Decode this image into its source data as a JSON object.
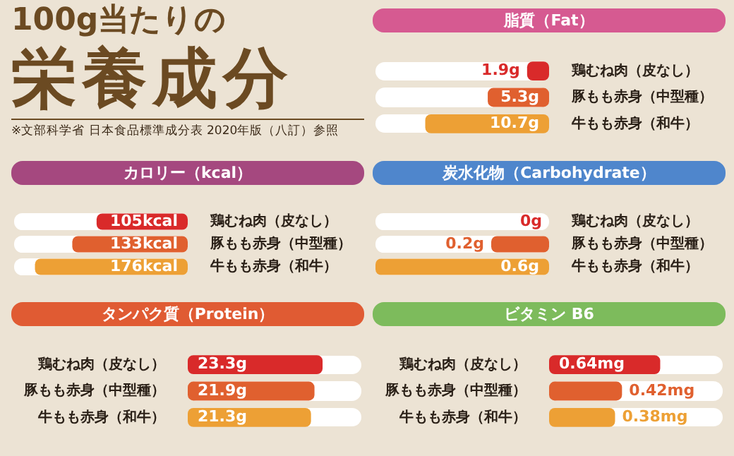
{
  "chart_data": [
    {
      "type": "other",
      "title": "100g当たりの",
      "subtitle": "栄養成分",
      "annotations": [
        "※文部科学省 日本食品標準成分表 2020年版（八訂）参照"
      ]
    },
    {
      "type": "bar",
      "orientation": "horizontal",
      "title": "脂質（Fat）",
      "categories": [
        "鶏むね肉（皮なし）",
        "豚もも赤身（中型種）",
        "牛もも赤身（和牛）"
      ],
      "values": [
        1.9,
        5.3,
        10.7
      ],
      "colors": [
        "#d92a2a",
        "#e0602f",
        "#eda035"
      ],
      "value_labels": [
        "1.9g",
        "5.3g",
        "10.7g"
      ]
    },
    {
      "type": "bar",
      "orientation": "horizontal",
      "title": "カロリー（kcal）",
      "categories": [
        "鶏むね肉（皮なし）",
        "豚もも赤身（中型種）",
        "牛もも赤身（和牛）"
      ],
      "values": [
        105,
        133,
        176
      ],
      "colors": [
        "#d92a2a",
        "#e0602f",
        "#eda035"
      ],
      "value_labels": [
        "105kcal",
        "133kcal",
        "176kcal"
      ]
    },
    {
      "type": "bar",
      "orientation": "horizontal",
      "title": "炭水化物（Carbohydrate）",
      "categories": [
        "鶏むね肉（皮なし）",
        "豚もも赤身（中型種）",
        "牛もも赤身（和牛）"
      ],
      "values": [
        0,
        0.2,
        0.6
      ],
      "colors": [
        "#d92a2a",
        "#e0602f",
        "#eda035"
      ],
      "value_labels": [
        "0g",
        "0.2g",
        "0.6g"
      ]
    },
    {
      "type": "bar",
      "orientation": "horizontal",
      "title": "タンパク質（Protein）",
      "categories": [
        "鶏むね肉（皮なし）",
        "豚もも赤身（中型種）",
        "牛もも赤身（和牛）"
      ],
      "values": [
        23.3,
        21.9,
        21.3
      ],
      "colors": [
        "#d92a2a",
        "#e0602f",
        "#eda035"
      ],
      "value_labels": [
        "23.3g",
        "21.9g",
        "21.3g"
      ]
    },
    {
      "type": "bar",
      "orientation": "horizontal",
      "title": "ビタミン B6",
      "categories": [
        "鶏むね肉（皮なし）",
        "豚もも赤身（中型種）",
        "牛もも赤身（和牛）"
      ],
      "values": [
        0.64,
        0.42,
        0.38
      ],
      "colors": [
        "#d92a2a",
        "#e0602f",
        "#eda035"
      ],
      "value_labels": [
        "0.64mg",
        "0.42mg",
        "0.38mg"
      ]
    }
  ]
}
